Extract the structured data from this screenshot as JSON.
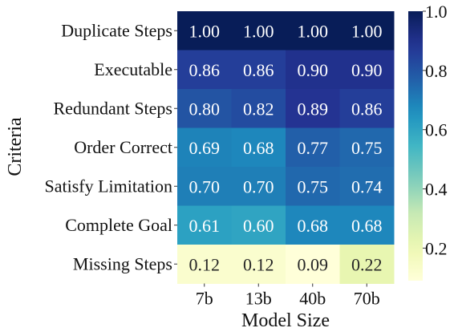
{
  "chart_data": {
    "type": "heatmap",
    "title": "",
    "xlabel": "Model Size",
    "ylabel": "Criteria",
    "x_categories": [
      "7b",
      "13b",
      "40b",
      "70b"
    ],
    "y_categories": [
      "Duplicate Steps",
      "Executable",
      "Redundant Steps",
      "Order Correct",
      "Satisfy Limitation",
      "Complete Goal",
      "Missing Steps"
    ],
    "values": [
      [
        1.0,
        1.0,
        1.0,
        1.0
      ],
      [
        0.86,
        0.86,
        0.9,
        0.9
      ],
      [
        0.8,
        0.82,
        0.89,
        0.86
      ],
      [
        0.69,
        0.68,
        0.77,
        0.75
      ],
      [
        0.7,
        0.7,
        0.75,
        0.74
      ],
      [
        0.61,
        0.6,
        0.68,
        0.68
      ],
      [
        0.12,
        0.12,
        0.09,
        0.22
      ]
    ],
    "value_labels": [
      [
        "1.00",
        "1.00",
        "1.00",
        "1.00"
      ],
      [
        "0.86",
        "0.86",
        "0.90",
        "0.90"
      ],
      [
        "0.80",
        "0.82",
        "0.89",
        "0.86"
      ],
      [
        "0.69",
        "0.68",
        "0.77",
        "0.75"
      ],
      [
        "0.70",
        "0.70",
        "0.75",
        "0.74"
      ],
      [
        "0.61",
        "0.60",
        "0.68",
        "0.68"
      ],
      [
        "0.12",
        "0.12",
        "0.09",
        "0.22"
      ]
    ],
    "colormap": "YlGnBu",
    "colorbar": {
      "range": [
        0.09,
        1.0
      ],
      "ticks": [
        0.2,
        0.4,
        0.6,
        0.8,
        1.0
      ],
      "tick_labels": [
        "0.2",
        "0.4",
        "0.6",
        "0.8",
        "1.0"
      ]
    },
    "grid": false,
    "legend": "none"
  }
}
